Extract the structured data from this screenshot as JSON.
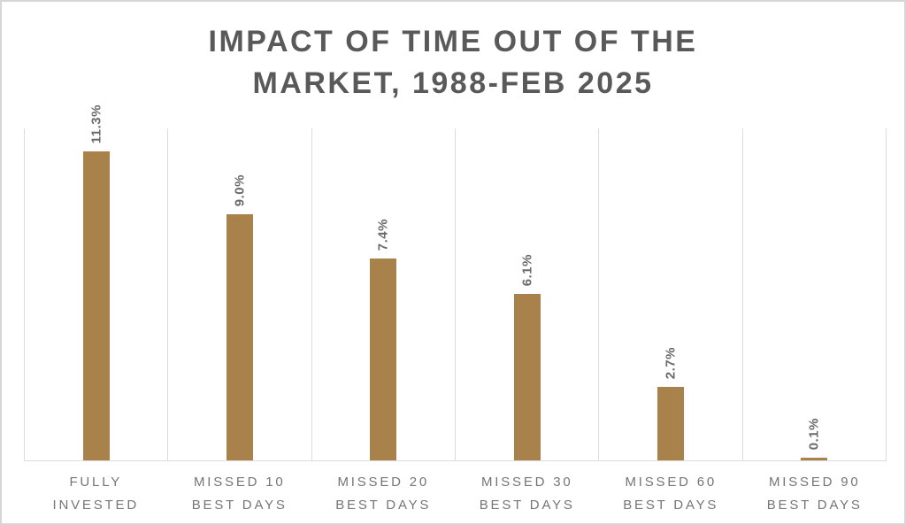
{
  "title": {
    "line1": "IMPACT OF TIME OUT OF THE",
    "line2": "MARKET, 1988-FEB 2025"
  },
  "chart_data": {
    "type": "bar",
    "title": "IMPACT OF TIME OUT OF THE MARKET, 1988-FEB 2025",
    "categories": [
      "FULLY INVESTED",
      "MISSED 10 BEST DAYS",
      "MISSED 20 BEST DAYS",
      "MISSED 30 BEST DAYS",
      "MISSED 60 BEST DAYS",
      "MISSED 90 BEST DAYS"
    ],
    "category_lines": [
      [
        "FULLY",
        "INVESTED"
      ],
      [
        "MISSED 10",
        "BEST DAYS"
      ],
      [
        "MISSED 20",
        "BEST DAYS"
      ],
      [
        "MISSED 30",
        "BEST DAYS"
      ],
      [
        "MISSED 60",
        "BEST DAYS"
      ],
      [
        "MISSED 90",
        "BEST DAYS"
      ]
    ],
    "values": [
      11.3,
      9.0,
      7.4,
      6.1,
      2.7,
      0.1
    ],
    "value_labels": [
      "11.3%",
      "9.0%",
      "7.4%",
      "6.1%",
      "2.7%",
      "0.1%"
    ],
    "xlabel": "",
    "ylabel": "",
    "ylim": [
      0,
      12.15
    ],
    "y_axis_ticks": "none",
    "legend": "none",
    "grid": "vertical category separators only",
    "bar_orientation": "vertical",
    "value_label_style": "rotated 90deg, bottom-to-top, above bar",
    "colors": {
      "bar": "#A8824A",
      "gridline": "#dcdcdc",
      "title": "#595959",
      "value_label": "#6a6a6a",
      "category_label": "#757575",
      "card_border": "#d6d6d6",
      "background": "#ffffff"
    }
  }
}
